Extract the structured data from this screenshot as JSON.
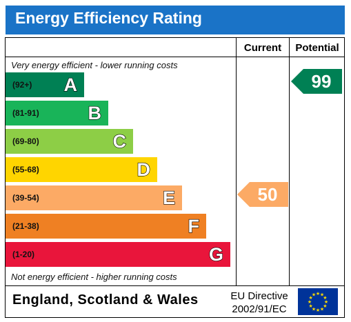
{
  "title": "Energy Efficiency Rating",
  "columns": {
    "current": "Current",
    "potential": "Potential"
  },
  "top_note": "Very energy efficient - lower running costs",
  "bottom_note": "Not energy efficient - higher running costs",
  "footer": {
    "region": "England, Scotland & Wales",
    "directive_line1": "EU Directive",
    "directive_line2": "2002/91/EC"
  },
  "chart_data": {
    "type": "bar",
    "categories": [
      "A",
      "B",
      "C",
      "D",
      "E",
      "F",
      "G"
    ],
    "ranges": [
      "(92+)",
      "(81-91)",
      "(69-80)",
      "(55-68)",
      "(39-54)",
      "(21-38)",
      "(1-20)"
    ],
    "range_min": [
      92,
      81,
      69,
      55,
      39,
      21,
      1
    ],
    "colors": [
      "#008054",
      "#19b459",
      "#8dce46",
      "#ffd500",
      "#fcaa65",
      "#ef8023",
      "#e9153b"
    ],
    "current": {
      "value": 50,
      "band": "E",
      "color": "#fcaa65"
    },
    "potential": {
      "value": 99,
      "band": "A",
      "color": "#008054"
    }
  }
}
